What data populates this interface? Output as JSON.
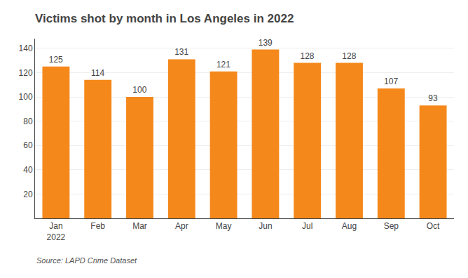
{
  "chart_data": {
    "type": "bar",
    "title": "Victims shot by month in Los Angeles in 2022",
    "categories": [
      "Jan\n2022",
      "Feb",
      "Mar",
      "Apr",
      "May",
      "Jun",
      "Jul",
      "Aug",
      "Sep",
      "Oct"
    ],
    "values": [
      125,
      114,
      100,
      131,
      121,
      139,
      128,
      128,
      107,
      93
    ],
    "color": "#F5881A",
    "ylim": [
      0,
      148
    ],
    "yticks": [
      20,
      40,
      60,
      80,
      100,
      120,
      140
    ],
    "grid": true,
    "data_labels": true,
    "annotations": [
      "Source: LAPD Crime Dataset"
    ]
  }
}
